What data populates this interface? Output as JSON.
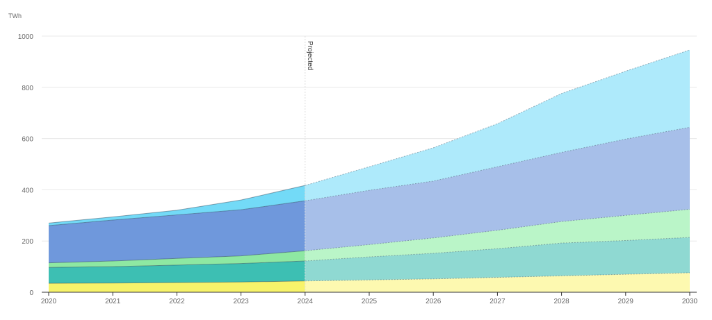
{
  "chart_data": {
    "type": "area",
    "stacked": true,
    "ylabel": "TWh",
    "ylim": [
      0,
      1000
    ],
    "yticks": [
      0,
      200,
      400,
      600,
      800,
      1000
    ],
    "x": [
      "2020",
      "2021",
      "2022",
      "2023",
      "2024",
      "2025",
      "2026",
      "2027",
      "2028",
      "2029",
      "2030"
    ],
    "projection_start": "2024",
    "annotation": "Projected",
    "grid": true,
    "series": [
      {
        "key": "s1",
        "color": "#f7f36a",
        "projected_color": "#fdf9b0",
        "values": [
          35,
          36,
          38,
          40,
          44,
          48,
          52,
          58,
          64,
          70,
          76
        ]
      },
      {
        "key": "s2",
        "color": "#3dbfb3",
        "projected_color": "#8fd9d2",
        "values": [
          62,
          64,
          68,
          72,
          78,
          90,
          100,
          112,
          128,
          132,
          138
        ]
      },
      {
        "key": "s3",
        "color": "#8ee8a2",
        "projected_color": "#baf5c8",
        "values": [
          18,
          22,
          26,
          30,
          40,
          48,
          60,
          72,
          84,
          98,
          110
        ]
      },
      {
        "key": "s4",
        "color": "#6f98dc",
        "projected_color": "#a7bfe9",
        "values": [
          145,
          160,
          170,
          180,
          195,
          212,
          222,
          248,
          270,
          298,
          320
        ]
      },
      {
        "key": "s5",
        "color": "#73daf7",
        "projected_color": "#aeeafb",
        "values": [
          10,
          12,
          18,
          38,
          60,
          92,
          130,
          168,
          230,
          265,
          302
        ]
      }
    ]
  }
}
